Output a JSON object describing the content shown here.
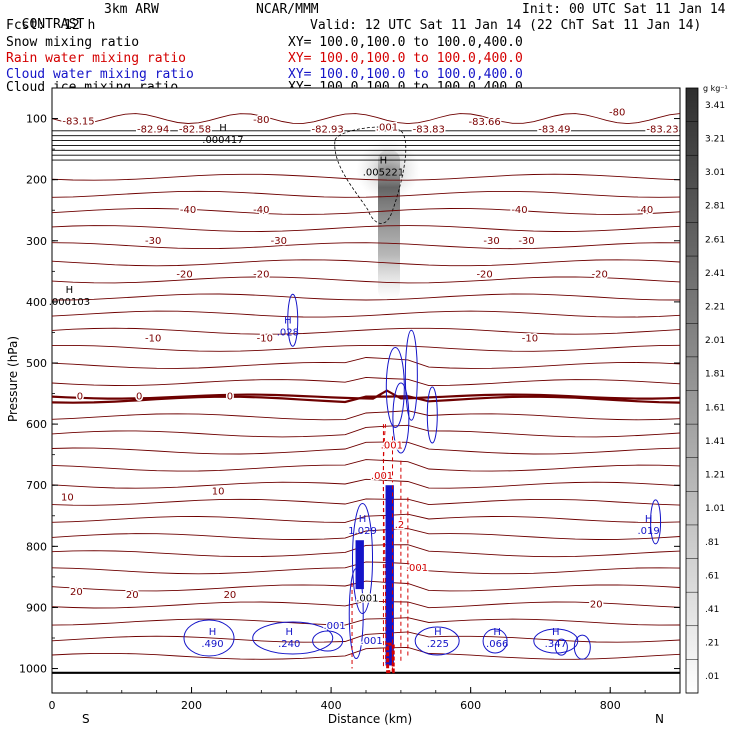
{
  "header": {
    "program": "CONTRAST",
    "model": "3km ARW",
    "org": "NCAR/MMM",
    "init": "Init: 00 UTC Sat 11 Jan 14",
    "fcst_label": "Fcst:",
    "fcst_value": "12 h",
    "valid": "Valid: 12 UTC Sat 11 Jan 14 (22 ChT Sat 11 Jan 14)"
  },
  "legend": [
    {
      "label": "Snow mixing ratio",
      "xy": "XY= 100.0,100.0 to 100.0,400.0",
      "color": "#000000"
    },
    {
      "label": "Rain water mixing ratio",
      "xy": "XY= 100.0,100.0 to 100.0,400.0",
      "color": "#d40000"
    },
    {
      "label": "Cloud water mixing ratio",
      "xy": "XY= 100.0,100.0 to 100.0,400.0",
      "color": "#1414c8"
    },
    {
      "label": "Cloud ice mixing ratio",
      "xy": "XY= 100.0,100.0 to 100.0,400.0",
      "color": "#000000"
    }
  ],
  "chart_data": {
    "type": "cross-section",
    "xlabel": "Distance (km)",
    "ylabel": "Pressure (hPa)",
    "xlim": [
      0,
      900
    ],
    "ylim": [
      1040,
      50
    ],
    "x_ticks": [
      0,
      200,
      400,
      600,
      800
    ],
    "y_ticks": [
      100,
      200,
      300,
      400,
      500,
      600,
      700,
      800,
      900,
      1000
    ],
    "x_end_labels": {
      "left": "S",
      "right": "N"
    },
    "colorbar": {
      "unit": "g kg⁻¹",
      "levels": [
        ".01",
        ".21",
        ".41",
        ".61",
        ".81",
        "1.01",
        "1.21",
        "1.41",
        "1.61",
        "1.81",
        "2.01",
        "2.21",
        "2.41",
        "2.61",
        "2.81",
        "3.01",
        "3.21",
        "3.41"
      ]
    },
    "temperature_labels": [
      {
        "text": "-83.15",
        "x": 38,
        "p": 105
      },
      {
        "text": "-82.94",
        "x": 145,
        "p": 118
      },
      {
        "text": "-82.58",
        "x": 205,
        "p": 118
      },
      {
        "text": "-80",
        "x": 300,
        "p": 102
      },
      {
        "text": "-82.93",
        "x": 395,
        "p": 118
      },
      {
        "text": ".001",
        "x": 480,
        "p": 115
      },
      {
        "text": "-83.83",
        "x": 540,
        "p": 118
      },
      {
        "text": "-83.66",
        "x": 620,
        "p": 106
      },
      {
        "text": "-83.49",
        "x": 720,
        "p": 118
      },
      {
        "text": "-80",
        "x": 810,
        "p": 90
      },
      {
        "text": "-83.23",
        "x": 875,
        "p": 118
      },
      {
        "text": "-40",
        "x": 195,
        "p": 250
      },
      {
        "text": "-40",
        "x": 300,
        "p": 250
      },
      {
        "text": "-40",
        "x": 670,
        "p": 250
      },
      {
        "text": "-40",
        "x": 850,
        "p": 250
      },
      {
        "text": "-30",
        "x": 145,
        "p": 300
      },
      {
        "text": "-30",
        "x": 325,
        "p": 300
      },
      {
        "text": "-30",
        "x": 630,
        "p": 300
      },
      {
        "text": "-30",
        "x": 680,
        "p": 300
      },
      {
        "text": "-20",
        "x": 190,
        "p": 355
      },
      {
        "text": "-20",
        "x": 300,
        "p": 355
      },
      {
        "text": "-20",
        "x": 620,
        "p": 355
      },
      {
        "text": "-20",
        "x": 785,
        "p": 355
      },
      {
        "text": "-10",
        "x": 145,
        "p": 460
      },
      {
        "text": "-10",
        "x": 305,
        "p": 460
      },
      {
        "text": "-10",
        "x": 685,
        "p": 460
      },
      {
        "text": "0",
        "x": 40,
        "p": 555
      },
      {
        "text": "0",
        "x": 125,
        "p": 555
      },
      {
        "text": "0",
        "x": 255,
        "p": 555
      },
      {
        "text": "10",
        "x": 22,
        "p": 720
      },
      {
        "text": "10",
        "x": 238,
        "p": 710
      },
      {
        "text": "20",
        "x": 35,
        "p": 875
      },
      {
        "text": "20",
        "x": 115,
        "p": 880
      },
      {
        "text": "20",
        "x": 255,
        "p": 880
      },
      {
        "text": "20",
        "x": 780,
        "p": 895
      }
    ],
    "maxima": [
      {
        "text": "H",
        "value": ".000417",
        "x": 245,
        "p": 135
      },
      {
        "text": "H",
        "value": ".005221",
        "x": 475,
        "p": 188
      },
      {
        "text": "H",
        "value": ".000103",
        "x": 25,
        "p": 400
      },
      {
        "text": "H",
        "value": ".028",
        "x": 338,
        "p": 450
      },
      {
        "text": "H",
        "value": "1.029",
        "x": 445,
        "p": 775
      },
      {
        "text": "H",
        "value": ".019",
        "x": 855,
        "p": 775
      },
      {
        "text": "H",
        "value": ".240",
        "x": 340,
        "p": 960
      },
      {
        "text": "H",
        "value": ".225",
        "x": 553,
        "p": 960
      },
      {
        "text": "H",
        "value": ".066",
        "x": 638,
        "p": 960
      },
      {
        "text": "H",
        "value": ".347",
        "x": 722,
        "p": 960
      },
      {
        "text": "H",
        "value": ".490",
        "x": 230,
        "p": 960
      }
    ],
    "minor_labels": [
      {
        "text": ".001",
        "color": "#1414c8",
        "x": 405,
        "p": 935
      },
      {
        "text": ".001",
        "color": "#1414c8",
        "x": 458,
        "p": 960
      },
      {
        "text": ".001",
        "color": "#d40000",
        "x": 473,
        "p": 690
      },
      {
        "text": ".001",
        "color": "#d40000",
        "x": 523,
        "p": 840
      },
      {
        "text": ".2",
        "color": "#d40000",
        "x": 498,
        "p": 770
      },
      {
        "text": ".001",
        "color": "#000000",
        "x": 452,
        "p": 890
      },
      {
        "text": ".001",
        "color": "#d40000",
        "x": 487,
        "p": 640
      }
    ]
  }
}
